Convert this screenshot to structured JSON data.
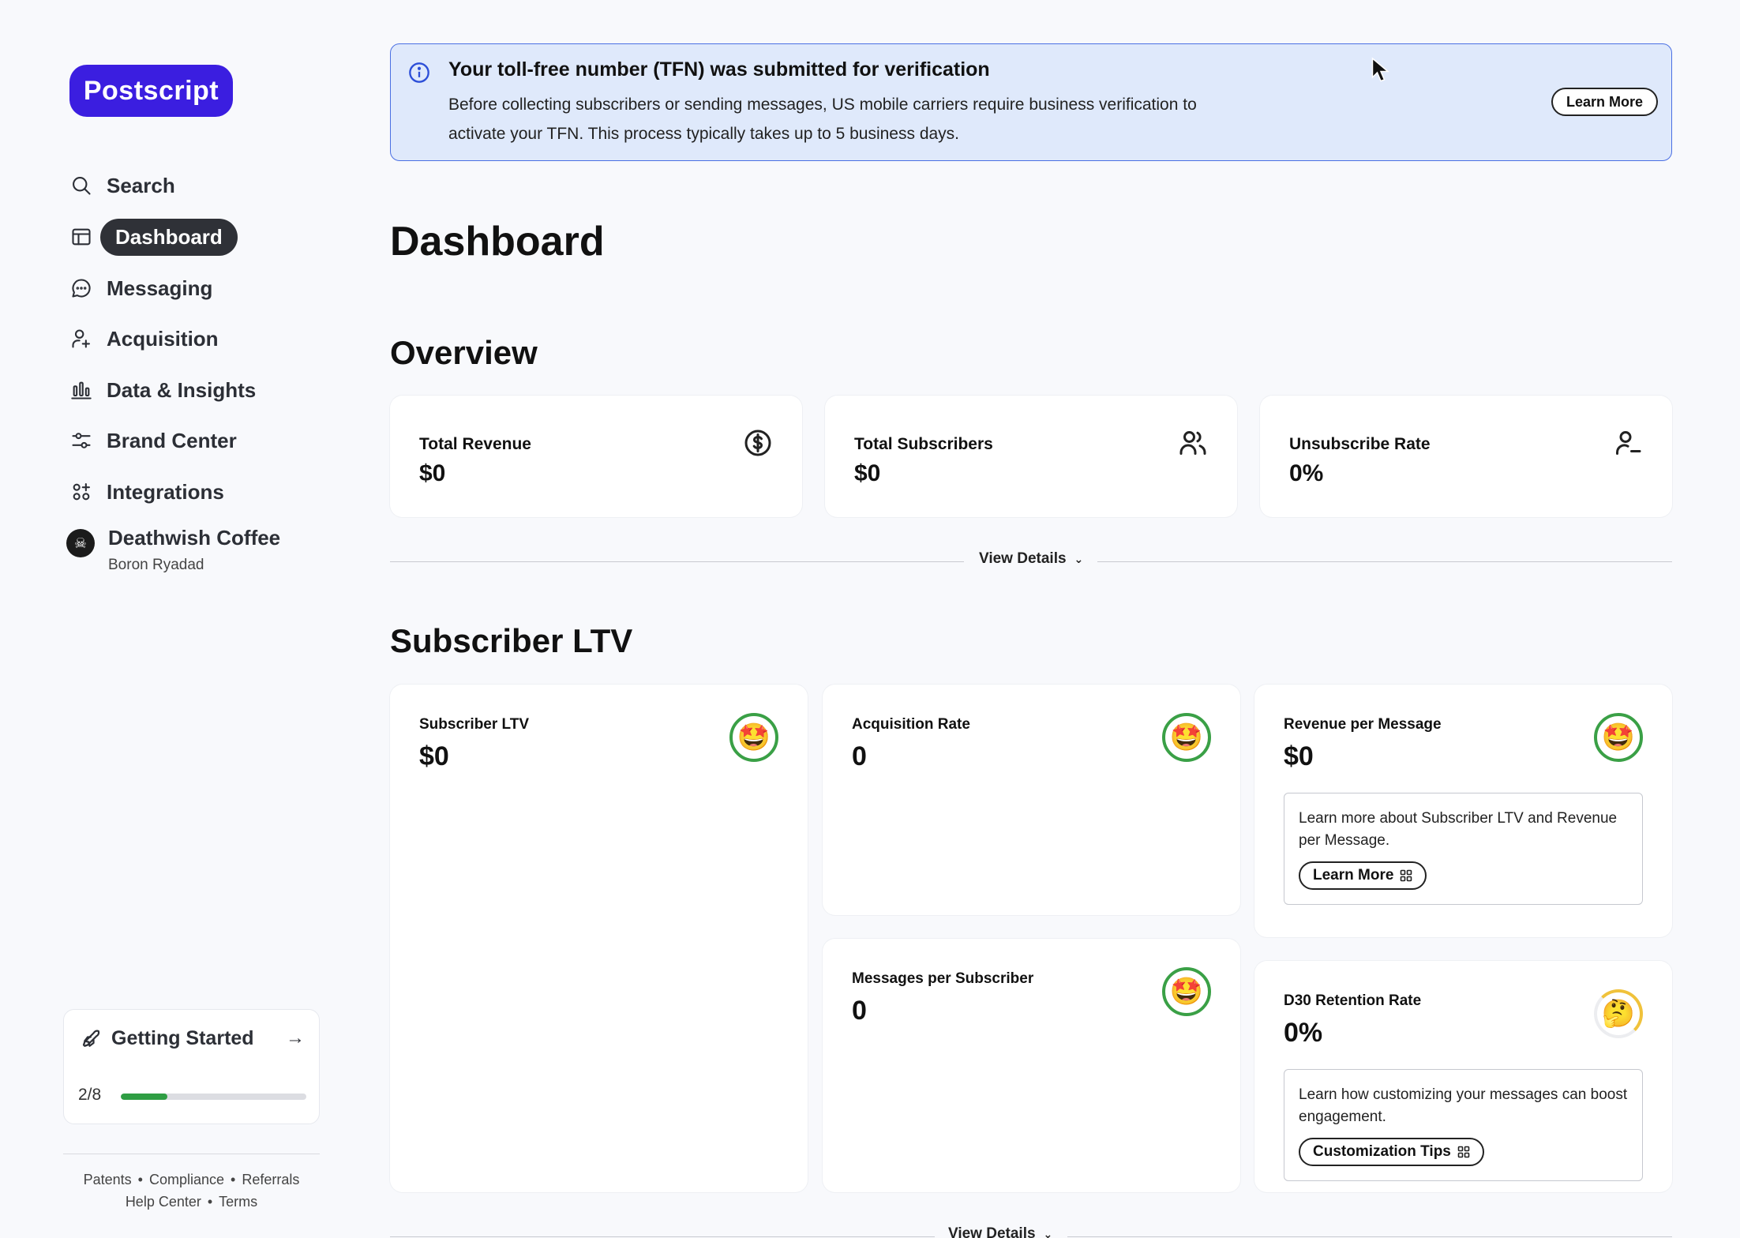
{
  "brand": {
    "logo_text": "Postscript"
  },
  "nav": {
    "items": [
      {
        "label": "Search",
        "icon": "search-icon"
      },
      {
        "label": "Dashboard",
        "icon": "dashboard-icon",
        "active": true
      },
      {
        "label": "Messaging",
        "icon": "chat-icon"
      },
      {
        "label": "Acquisition",
        "icon": "user-plus-icon"
      },
      {
        "label": "Data & Insights",
        "icon": "bar-chart-icon"
      },
      {
        "label": "Brand Center",
        "icon": "sliders-icon"
      },
      {
        "label": "Integrations",
        "icon": "apps-icon"
      }
    ],
    "account": {
      "name": "Deathwish Coffee",
      "user": "Boron Ryadad"
    }
  },
  "getting_started": {
    "title": "Getting Started",
    "progress_label": "2/8",
    "progress_fraction": 0.25
  },
  "footer": {
    "links_row1": [
      "Patents",
      "Compliance",
      "Referrals"
    ],
    "links_row2": [
      "Help Center",
      "Terms"
    ]
  },
  "banner": {
    "title": "Your toll-free number (TFN) was submitted for verification",
    "body": "Before collecting subscribers or sending messages, US mobile carriers require business verification to activate your TFN. This process typically takes up to 5 business days.",
    "button": "Learn More"
  },
  "page": {
    "title": "Dashboard"
  },
  "overview": {
    "title": "Overview",
    "cards": [
      {
        "label": "Total Revenue",
        "value": "$0",
        "icon": "dollar-circle-icon"
      },
      {
        "label": "Total Subscribers",
        "value": "$0",
        "icon": "users-icon"
      },
      {
        "label": "Unsubscribe Rate",
        "value": "0%",
        "icon": "user-minus-icon"
      }
    ],
    "view_details": "View Details"
  },
  "ltv": {
    "title": "Subscriber LTV",
    "cards": {
      "subscriber_ltv": {
        "label": "Subscriber LTV",
        "value": "$0"
      },
      "acquisition_rate": {
        "label": "Acquisition Rate",
        "value": "0"
      },
      "revenue_per_message": {
        "label": "Revenue per Message",
        "value": "$0",
        "info": "Learn more about Subscriber LTV and Revenue per Message.",
        "button": "Learn More"
      },
      "messages_per_subscriber": {
        "label": "Messages per Subscriber",
        "value": "0"
      },
      "d30_retention": {
        "label": "D30 Retention Rate",
        "value": "0%",
        "info": "Learn how customizing your messages can boost engagement.",
        "button": "Customization Tips"
      }
    },
    "view_details": "View Details"
  }
}
